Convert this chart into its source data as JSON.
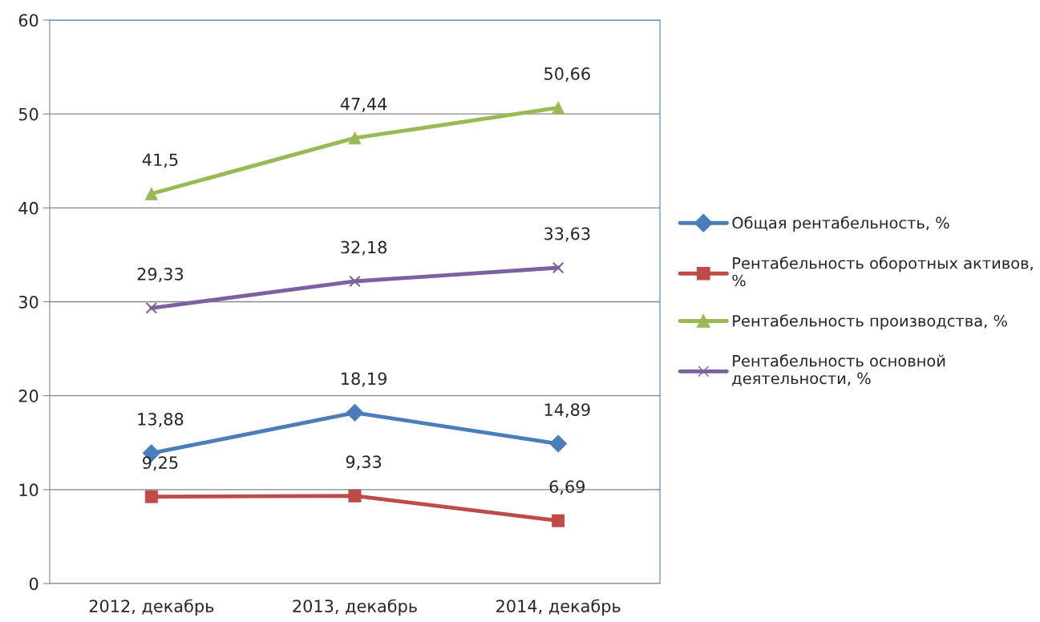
{
  "chart_data": {
    "type": "line",
    "categories": [
      "2012, декабрь",
      "2013, декабрь",
      "2014, декабрь"
    ],
    "series": [
      {
        "name": "Общая рентабельность, %",
        "color": "#4a7ebb",
        "marker": "diamond",
        "values": [
          13.88,
          18.19,
          14.89
        ],
        "value_labels": [
          "13,88",
          "18,19",
          "14,89"
        ]
      },
      {
        "name": "Рентабельность оборотных активов,\n%",
        "color": "#be4b48",
        "marker": "square",
        "values": [
          9.25,
          9.33,
          6.69
        ],
        "value_labels": [
          "9,25",
          "9,33",
          "6,69"
        ]
      },
      {
        "name": "Рентабельность производства, %",
        "color": "#98b954",
        "marker": "triangle",
        "values": [
          41.5,
          47.44,
          50.66
        ],
        "value_labels": [
          "41,5",
          "47,44",
          "50,66"
        ]
      },
      {
        "name": "Рентабельность основной\nдеятельности, %",
        "color": "#7d60a0",
        "marker": "cross",
        "values": [
          29.33,
          32.18,
          33.63
        ],
        "value_labels": [
          "29,33",
          "32,18",
          "33,63"
        ]
      }
    ],
    "ylim": [
      0,
      60
    ],
    "yticks": [
      0,
      10,
      20,
      30,
      40,
      50,
      60
    ],
    "grid": "y",
    "legend": "right"
  }
}
